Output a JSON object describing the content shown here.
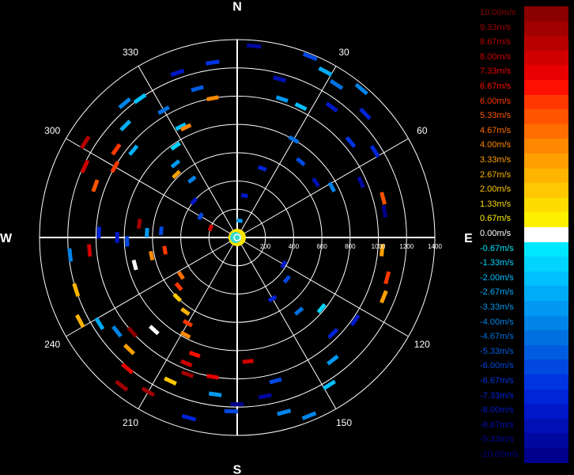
{
  "chart_data": {
    "type": "polar radar velocity plot",
    "compass": {
      "north": "N",
      "south": "S",
      "east": "E",
      "west": "W"
    },
    "angle_labels": [
      "30",
      "60",
      "120",
      "150",
      "210",
      "240",
      "300",
      "330"
    ],
    "angle_values_deg": [
      30,
      60,
      120,
      150,
      210,
      240,
      300,
      330
    ],
    "range_labels": [
      "200",
      "400",
      "600",
      "800",
      "1000",
      "1200",
      "1400"
    ],
    "range_values": [
      200,
      400,
      600,
      800,
      1000,
      1200,
      1400
    ],
    "range_max": 1400,
    "grid": true,
    "colorbar": {
      "min": -10.0,
      "max": 10.0,
      "unit": "m/s",
      "entries": [
        {
          "label": "10.00m/s",
          "value": 10.0,
          "color": "#8b0000"
        },
        {
          "label": "9.33m/s",
          "value": 9.33,
          "color": "#a00000"
        },
        {
          "label": "8.67m/s",
          "value": 8.67,
          "color": "#b80000"
        },
        {
          "label": "8.00m/s",
          "value": 8.0,
          "color": "#d00000"
        },
        {
          "label": "7.33m/s",
          "value": 7.33,
          "color": "#e80000"
        },
        {
          "label": "6.67m/s",
          "value": 6.67,
          "color": "#ff1000"
        },
        {
          "label": "6.00m/s",
          "value": 6.0,
          "color": "#ff3800"
        },
        {
          "label": "5.33m/s",
          "value": 5.33,
          "color": "#ff5500"
        },
        {
          "label": "4.67m/s",
          "value": 4.67,
          "color": "#ff6e00"
        },
        {
          "label": "4.00m/s",
          "value": 4.0,
          "color": "#ff8800"
        },
        {
          "label": "3.33m/s",
          "value": 3.33,
          "color": "#ffa000"
        },
        {
          "label": "2.67m/s",
          "value": 2.67,
          "color": "#ffb400"
        },
        {
          "label": "2.00m/s",
          "value": 2.0,
          "color": "#ffc800"
        },
        {
          "label": "1.33m/s",
          "value": 1.33,
          "color": "#ffdc00"
        },
        {
          "label": "0.67m/s",
          "value": 0.67,
          "color": "#fff000"
        },
        {
          "label": "0.00m/s",
          "value": 0.0,
          "color": "#ffffff"
        },
        {
          "label": "-0.67m/s",
          "value": -0.67,
          "color": "#00e8ff"
        },
        {
          "label": "-1.33m/s",
          "value": -1.33,
          "color": "#00d4ff"
        },
        {
          "label": "-2.00m/s",
          "value": -2.0,
          "color": "#00c0ff"
        },
        {
          "label": "-2.67m/s",
          "value": -2.67,
          "color": "#00acf8"
        },
        {
          "label": "-3.33m/s",
          "value": -3.33,
          "color": "#0098f0"
        },
        {
          "label": "-4.00m/s",
          "value": -4.0,
          "color": "#0084e8"
        },
        {
          "label": "-4.67m/s",
          "value": -4.67,
          "color": "#0070e0"
        },
        {
          "label": "-5.33m/s",
          "value": -5.33,
          "color": "#005ce0"
        },
        {
          "label": "-6.00m/s",
          "value": -6.0,
          "color": "#0048e0"
        },
        {
          "label": "-6.67m/s",
          "value": -6.67,
          "color": "#0034e0"
        },
        {
          "label": "-7.33m/s",
          "value": -7.33,
          "color": "#0024d8"
        },
        {
          "label": "-8.00m/s",
          "value": -8.0,
          "color": "#0018c8"
        },
        {
          "label": "-8.67m/s",
          "value": -8.67,
          "color": "#0010b4"
        },
        {
          "label": "-9.33m/s",
          "value": -9.33,
          "color": "#0008a0"
        },
        {
          "label": "-10.00m/s",
          "value": -10.0,
          "color": "#00008c"
        }
      ]
    },
    "data": [
      {
        "az": 5,
        "range": 1360,
        "v": -9.3
      },
      {
        "az": 22,
        "range": 1380,
        "v": -6.0
      },
      {
        "az": 28,
        "range": 1330,
        "v": -2.5
      },
      {
        "az": 33,
        "range": 1290,
        "v": -4.7
      },
      {
        "az": 40,
        "range": 1370,
        "v": -4.0
      },
      {
        "az": 46,
        "range": 1260,
        "v": -7.3
      },
      {
        "az": 15,
        "range": 1160,
        "v": -8.7
      },
      {
        "az": 18,
        "range": 1030,
        "v": -3.3
      },
      {
        "az": 26,
        "range": 1030,
        "v": -2.0
      },
      {
        "az": 36,
        "range": 1140,
        "v": -8.0
      },
      {
        "az": 50,
        "range": 1050,
        "v": -6.7
      },
      {
        "az": 58,
        "range": 1150,
        "v": -7.3
      },
      {
        "az": 66,
        "range": 960,
        "v": -9.3
      },
      {
        "az": 75,
        "range": 1070,
        "v": 5.3
      },
      {
        "az": 80,
        "range": 1060,
        "v": -10.0
      },
      {
        "az": 30,
        "range": 800,
        "v": -4.7
      },
      {
        "az": 40,
        "range": 700,
        "v": -6.0
      },
      {
        "az": 55,
        "range": 680,
        "v": -8.7
      },
      {
        "az": 62,
        "range": 760,
        "v": -4.0
      },
      {
        "az": 20,
        "range": 520,
        "v": -7.3
      },
      {
        "az": 10,
        "range": 300,
        "v": -8.0
      },
      {
        "az": 8,
        "range": 120,
        "v": -3.3
      },
      {
        "az": 95,
        "range": 1030,
        "v": 3.3
      },
      {
        "az": 105,
        "range": 1100,
        "v": 6.0
      },
      {
        "az": 112,
        "range": 1120,
        "v": 3.3
      },
      {
        "az": 125,
        "range": 1020,
        "v": -8.0
      },
      {
        "az": 135,
        "range": 960,
        "v": -7.3
      },
      {
        "az": 142,
        "range": 1100,
        "v": -3.3
      },
      {
        "az": 148,
        "range": 1230,
        "v": -2.0
      },
      {
        "az": 158,
        "range": 1360,
        "v": -4.0
      },
      {
        "az": 165,
        "range": 1280,
        "v": -4.0
      },
      {
        "az": 130,
        "range": 780,
        "v": -1.3
      },
      {
        "az": 140,
        "range": 680,
        "v": -4.7
      },
      {
        "az": 130,
        "range": 460,
        "v": -6.0
      },
      {
        "az": 120,
        "range": 380,
        "v": -8.0
      },
      {
        "az": 150,
        "range": 500,
        "v": -7.3
      },
      {
        "az": 170,
        "range": 1140,
        "v": -9.3
      },
      {
        "az": 165,
        "range": 1050,
        "v": -6.0
      },
      {
        "az": 175,
        "range": 880,
        "v": 8.0
      },
      {
        "az": 180,
        "range": 1180,
        "v": -10.0
      },
      {
        "az": 182,
        "range": 1230,
        "v": -6.0
      },
      {
        "az": 188,
        "range": 1120,
        "v": -3.3
      },
      {
        "az": 190,
        "range": 1000,
        "v": 7.3
      },
      {
        "az": 195,
        "range": 1320,
        "v": -7.3
      },
      {
        "az": 200,
        "range": 1030,
        "v": 9.3
      },
      {
        "az": 202,
        "range": 960,
        "v": 8.0
      },
      {
        "az": 200,
        "range": 880,
        "v": 6.7
      },
      {
        "az": 205,
        "range": 1120,
        "v": 2.0
      },
      {
        "az": 210,
        "range": 1260,
        "v": 9.3
      },
      {
        "az": 208,
        "range": 780,
        "v": 4.0
      },
      {
        "az": 210,
        "range": 700,
        "v": 6.0
      },
      {
        "az": 215,
        "range": 640,
        "v": 2.7
      },
      {
        "az": 218,
        "range": 1330,
        "v": 9.3
      },
      {
        "az": 220,
        "range": 1210,
        "v": 7.3
      },
      {
        "az": 224,
        "range": 1100,
        "v": 3.3
      },
      {
        "az": 228,
        "range": 1000,
        "v": 10.0
      },
      {
        "az": 232,
        "range": 1080,
        "v": -4.0
      },
      {
        "az": 222,
        "range": 880,
        "v": 0.0
      },
      {
        "az": 225,
        "range": 600,
        "v": 2.0
      },
      {
        "az": 230,
        "range": 540,
        "v": 6.0
      },
      {
        "az": 236,
        "range": 480,
        "v": 4.7
      },
      {
        "az": 238,
        "range": 1150,
        "v": -2.7
      },
      {
        "az": 242,
        "range": 1260,
        "v": 2.7
      },
      {
        "az": 252,
        "range": 1200,
        "v": 2.7
      },
      {
        "az": 255,
        "range": 750,
        "v": 0.0
      },
      {
        "az": 258,
        "range": 620,
        "v": 4.0
      },
      {
        "az": 260,
        "range": 520,
        "v": 6.0
      },
      {
        "az": 264,
        "range": 1190,
        "v": -4.0
      },
      {
        "az": 265,
        "range": 1050,
        "v": 8.0
      },
      {
        "az": 268,
        "range": 780,
        "v": -6.0
      },
      {
        "az": 270,
        "range": 850,
        "v": -8.0
      },
      {
        "az": 272,
        "range": 980,
        "v": -7.3
      },
      {
        "az": 273,
        "range": 640,
        "v": -3.3
      },
      {
        "az": 275,
        "range": 540,
        "v": -6.0
      },
      {
        "az": 278,
        "range": 700,
        "v": 9.3
      },
      {
        "az": 290,
        "range": 1070,
        "v": 5.3
      },
      {
        "az": 295,
        "range": 1190,
        "v": 8.0
      },
      {
        "az": 300,
        "range": 1000,
        "v": 6.0
      },
      {
        "az": 302,
        "range": 1270,
        "v": 8.7
      },
      {
        "az": 306,
        "range": 1060,
        "v": 6.0
      },
      {
        "az": 310,
        "range": 960,
        "v": -2.7
      },
      {
        "az": 315,
        "range": 1120,
        "v": -2.7
      },
      {
        "az": 320,
        "range": 1240,
        "v": -4.0
      },
      {
        "az": 325,
        "range": 1200,
        "v": -2.0
      },
      {
        "az": 330,
        "range": 1040,
        "v": -4.7
      },
      {
        "az": 333,
        "range": 880,
        "v": -2.0
      },
      {
        "az": 326,
        "range": 780,
        "v": -1.3
      },
      {
        "az": 320,
        "range": 680,
        "v": -3.3
      },
      {
        "az": 316,
        "range": 620,
        "v": 3.3
      },
      {
        "az": 322,
        "range": 520,
        "v": -4.0
      },
      {
        "az": 335,
        "range": 860,
        "v": 4.0
      },
      {
        "az": 340,
        "range": 1240,
        "v": -8.0
      },
      {
        "az": 345,
        "range": 1090,
        "v": -5.3
      },
      {
        "az": 350,
        "range": 1000,
        "v": 4.0
      },
      {
        "az": 352,
        "range": 1250,
        "v": -6.7
      },
      {
        "az": 310,
        "range": 400,
        "v": -8.0
      },
      {
        "az": 300,
        "range": 300,
        "v": -6.0
      },
      {
        "az": 290,
        "range": 200,
        "v": 8.0
      }
    ]
  }
}
